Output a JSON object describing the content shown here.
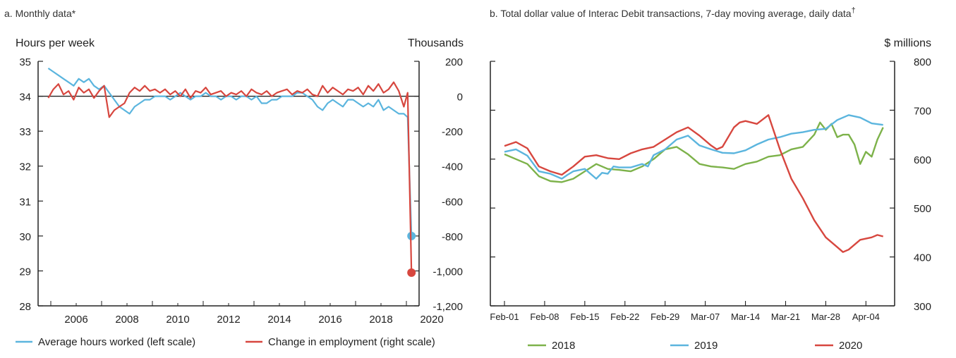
{
  "chart_data": [
    {
      "panel": "a",
      "type": "line",
      "title": "a. Monthly data*",
      "left_unit": "Hours per week",
      "right_unit": "Thousands",
      "ylim_left": [
        28,
        35
      ],
      "ylim_right": [
        -1200,
        200
      ],
      "yticks_left": [
        "35",
        "34",
        "33",
        "32",
        "31",
        "30",
        "29",
        "28"
      ],
      "yticks_right": [
        "200",
        "0",
        "-200",
        "-400",
        "-600",
        "-800",
        "-1,000",
        "-1,200"
      ],
      "xlim": [
        2005.5,
        2020.5
      ],
      "xticks": [
        "2006",
        "2008",
        "2010",
        "2012",
        "2014",
        "2016",
        "2018",
        "2020"
      ],
      "series": [
        {
          "name": "Average hours worked (left scale)",
          "color": "#5bb5de",
          "axis": "left",
          "x": [
            2005.9,
            2006.1,
            2006.3,
            2006.5,
            2006.7,
            2006.9,
            2007.1,
            2007.3,
            2007.5,
            2007.7,
            2007.9,
            2008.1,
            2008.3,
            2008.5,
            2008.7,
            2008.9,
            2009.1,
            2009.3,
            2009.5,
            2009.7,
            2009.9,
            2010.1,
            2010.3,
            2010.5,
            2010.7,
            2010.9,
            2011.1,
            2011.3,
            2011.5,
            2011.7,
            2011.9,
            2012.1,
            2012.3,
            2012.5,
            2012.7,
            2012.9,
            2013.1,
            2013.3,
            2013.5,
            2013.7,
            2013.9,
            2014.1,
            2014.3,
            2014.5,
            2014.7,
            2014.9,
            2015.1,
            2015.3,
            2015.5,
            2015.7,
            2015.9,
            2016.1,
            2016.3,
            2016.5,
            2016.7,
            2016.9,
            2017.1,
            2017.3,
            2017.5,
            2017.7,
            2017.9,
            2018.1,
            2018.3,
            2018.5,
            2018.7,
            2018.9,
            2019.1,
            2019.3,
            2019.5,
            2019.7,
            2019.9,
            2020.05,
            2020.2
          ],
          "values": [
            34.8,
            34.7,
            34.6,
            34.5,
            34.4,
            34.3,
            34.5,
            34.4,
            34.5,
            34.3,
            34.2,
            34.3,
            34.1,
            33.9,
            33.7,
            33.6,
            33.5,
            33.7,
            33.8,
            33.9,
            33.9,
            34.0,
            34.0,
            34.0,
            33.9,
            34.0,
            34.1,
            34.0,
            33.9,
            34.0,
            34.0,
            34.1,
            34.0,
            34.0,
            33.9,
            34.0,
            34.0,
            33.9,
            34.0,
            34.0,
            33.9,
            34.0,
            33.8,
            33.8,
            33.9,
            33.9,
            34.0,
            34.0,
            34.0,
            34.1,
            34.1,
            34.0,
            33.9,
            33.7,
            33.6,
            33.8,
            33.9,
            33.8,
            33.7,
            33.9,
            33.9,
            33.8,
            33.7,
            33.8,
            33.7,
            33.9,
            33.6,
            33.7,
            33.6,
            33.5,
            33.5,
            33.4,
            30.0
          ]
        },
        {
          "name": "Change in employment (right scale)",
          "color": "#d7473f",
          "axis": "right",
          "x": [
            2005.9,
            2006.1,
            2006.3,
            2006.5,
            2006.7,
            2006.9,
            2007.1,
            2007.3,
            2007.5,
            2007.7,
            2007.9,
            2008.1,
            2008.3,
            2008.5,
            2008.7,
            2008.9,
            2009.1,
            2009.3,
            2009.5,
            2009.7,
            2009.9,
            2010.1,
            2010.3,
            2010.5,
            2010.7,
            2010.9,
            2011.1,
            2011.3,
            2011.5,
            2011.7,
            2011.9,
            2012.1,
            2012.3,
            2012.5,
            2012.7,
            2012.9,
            2013.1,
            2013.3,
            2013.5,
            2013.7,
            2013.9,
            2014.1,
            2014.3,
            2014.5,
            2014.7,
            2014.9,
            2015.1,
            2015.3,
            2015.5,
            2015.7,
            2015.9,
            2016.1,
            2016.3,
            2016.5,
            2016.7,
            2016.9,
            2017.1,
            2017.3,
            2017.5,
            2017.7,
            2017.9,
            2018.1,
            2018.3,
            2018.5,
            2018.7,
            2018.9,
            2019.1,
            2019.3,
            2019.5,
            2019.7,
            2019.9,
            2020.05,
            2020.2
          ],
          "values": [
            -10,
            40,
            70,
            10,
            30,
            -20,
            50,
            20,
            40,
            -10,
            30,
            60,
            -120,
            -80,
            -60,
            -40,
            20,
            50,
            30,
            60,
            30,
            40,
            20,
            40,
            10,
            30,
            0,
            40,
            -10,
            30,
            20,
            50,
            10,
            20,
            30,
            0,
            20,
            10,
            30,
            0,
            40,
            20,
            10,
            30,
            0,
            20,
            30,
            40,
            10,
            30,
            20,
            40,
            10,
            0,
            60,
            20,
            50,
            30,
            10,
            40,
            30,
            50,
            10,
            60,
            30,
            70,
            20,
            40,
            80,
            30,
            -60,
            20,
            -1010
          ]
        }
      ]
    },
    {
      "panel": "b",
      "type": "line",
      "title": "b. Total dollar value of Interac Debit transactions, 7-day moving average, daily data",
      "title_mark": "†",
      "right_unit": "$ millions",
      "ylim": [
        300,
        800
      ],
      "yticks": [
        "800",
        "700",
        "600",
        "500",
        "400",
        "300"
      ],
      "xlim": [
        0,
        68
      ],
      "xticks": [
        "Feb-01",
        "Feb-08",
        "Feb-15",
        "Feb-22",
        "Feb-29",
        "Mar-07",
        "Mar-14",
        "Mar-21",
        "Mar-28",
        "Apr-04"
      ],
      "series": [
        {
          "name": "2018",
          "color": "#7db24a",
          "x": [
            0,
            2,
            4,
            6,
            8,
            10,
            12,
            14,
            16,
            18,
            20,
            22,
            24,
            26,
            28,
            30,
            32,
            34,
            36,
            38,
            40,
            42,
            44,
            46,
            48,
            50,
            52,
            54,
            55,
            56,
            57,
            58,
            59,
            60,
            61,
            62,
            63,
            64,
            65,
            66
          ],
          "values": [
            610,
            600,
            590,
            565,
            555,
            553,
            560,
            575,
            590,
            580,
            578,
            575,
            585,
            600,
            620,
            625,
            610,
            590,
            585,
            583,
            580,
            590,
            595,
            605,
            608,
            620,
            625,
            650,
            675,
            660,
            672,
            645,
            650,
            650,
            630,
            590,
            615,
            605,
            640,
            665
          ]
        },
        {
          "name": "2019",
          "color": "#5bb5de",
          "x": [
            0,
            2,
            4,
            6,
            8,
            10,
            11,
            12,
            14,
            16,
            17,
            18,
            19,
            20,
            22,
            24,
            25,
            26,
            28,
            30,
            32,
            34,
            36,
            38,
            40,
            42,
            44,
            46,
            48,
            50,
            52,
            54,
            56,
            58,
            60,
            62,
            64,
            66
          ],
          "values": [
            615,
            620,
            607,
            575,
            570,
            560,
            568,
            575,
            580,
            560,
            572,
            570,
            585,
            583,
            583,
            590,
            585,
            608,
            620,
            640,
            648,
            628,
            620,
            613,
            612,
            618,
            630,
            640,
            645,
            652,
            655,
            660,
            662,
            680,
            690,
            685,
            673,
            670
          ]
        },
        {
          "name": "2020",
          "color": "#d7473f",
          "x": [
            0,
            2,
            4,
            6,
            8,
            10,
            12,
            14,
            16,
            18,
            20,
            22,
            24,
            26,
            28,
            30,
            32,
            34,
            36,
            37,
            38,
            40,
            41,
            42,
            44,
            46,
            48,
            50,
            52,
            54,
            56,
            58,
            59,
            60,
            62,
            64,
            65,
            66
          ],
          "values": [
            627,
            635,
            622,
            585,
            575,
            568,
            585,
            605,
            608,
            602,
            600,
            612,
            620,
            625,
            640,
            655,
            665,
            648,
            628,
            620,
            625,
            665,
            675,
            678,
            672,
            690,
            620,
            560,
            520,
            475,
            440,
            420,
            410,
            415,
            435,
            440,
            445,
            442
          ]
        }
      ]
    }
  ]
}
